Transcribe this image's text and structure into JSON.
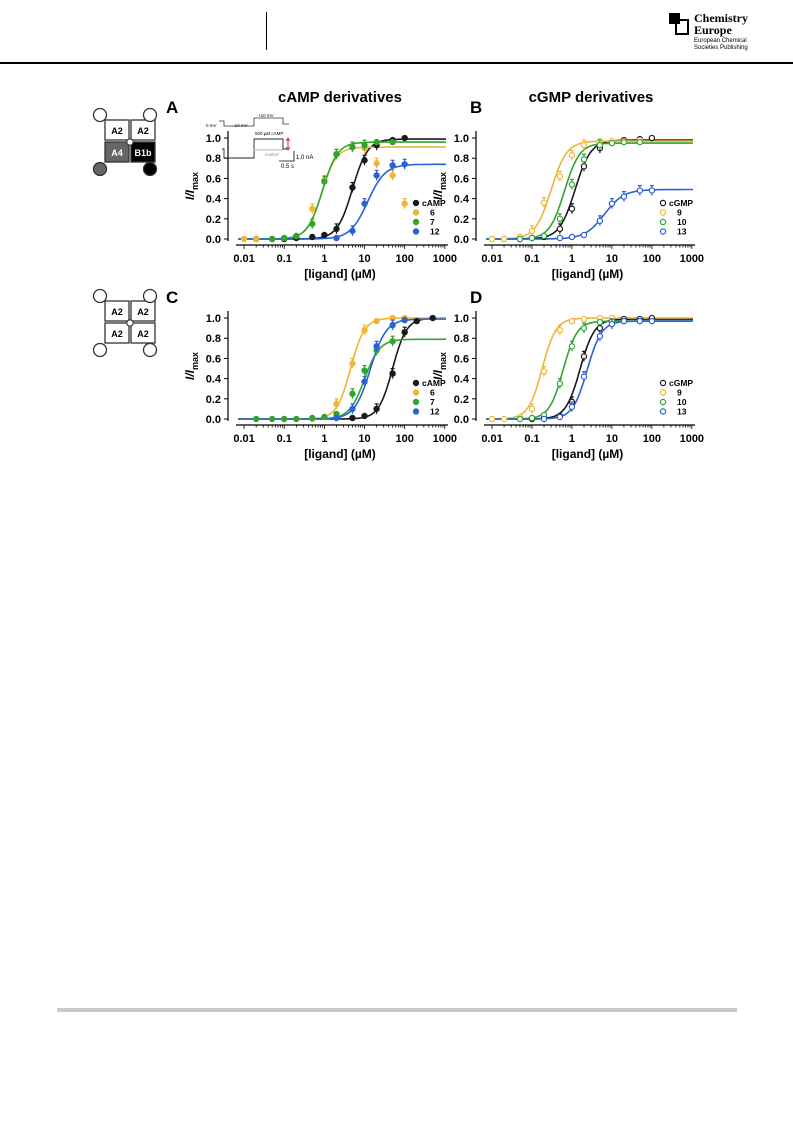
{
  "header": {
    "journal_brand_line1": "Chemistry",
    "journal_brand_line2": "Europe",
    "publisher_line1": "European Chemical",
    "publisher_line2": "Societies Publishing"
  },
  "figure": {
    "column_titles": [
      "cAMP derivatives",
      "cGMP derivatives"
    ],
    "inset": {
      "voltage_labels": [
        "0 mV",
        "−10 mV",
        "+10 mV"
      ],
      "ligand_label": "500 µM cAMP",
      "control_label": "control",
      "scale_current": "1.0 nA",
      "scale_time": "0.5 s"
    },
    "schematics": [
      {
        "subunits": [
          "A2",
          "A2",
          "A4",
          "B1b"
        ],
        "colors": [
          "#ffffff",
          "#ffffff",
          "#666666",
          "#000000"
        ]
      },
      {
        "subunits": [
          "A2",
          "A2",
          "A2",
          "A2"
        ],
        "colors": [
          "#ffffff",
          "#ffffff",
          "#ffffff",
          "#ffffff"
        ]
      }
    ]
  },
  "chart_data": [
    {
      "panel": "A",
      "type": "line",
      "xscale": "log",
      "xlim": [
        0.005,
        1200
      ],
      "ylim": [
        0,
        1.05
      ],
      "xlabel": "[ligand] (µM)",
      "ylabel": "I/I",
      "ylabel_sub": "max",
      "xticks": [
        "0.01",
        "0.1",
        "1",
        "10",
        "100",
        "1000"
      ],
      "yticks": [
        "0.0",
        "0.2",
        "0.4",
        "0.6",
        "0.8",
        "1.0"
      ],
      "legend_position": "bottom-right",
      "marker": "filled",
      "series": [
        {
          "name": "cAMP",
          "color": "#1a1a1a",
          "fit": {
            "max": 0.99,
            "ec50": 5.0,
            "h": 2.3
          },
          "x": [
            0.02,
            0.05,
            0.1,
            0.2,
            0.5,
            1,
            2,
            5,
            10,
            20,
            50,
            100
          ],
          "y": [
            0,
            0,
            0,
            0.01,
            0.02,
            0.04,
            0.1,
            0.51,
            0.78,
            0.93,
            0.98,
            1.0
          ]
        },
        {
          "name": "6",
          "color": "#f0b537",
          "fit": {
            "max": 0.91,
            "ec50": 0.85,
            "h": 2.4
          },
          "x": [
            0.01,
            0.02,
            0.05,
            0.1,
            0.2,
            0.5,
            1,
            2,
            5,
            10,
            20,
            50,
            100
          ],
          "y": [
            0,
            0,
            0,
            0.01,
            0.03,
            0.3,
            0.58,
            0.84,
            0.91,
            0.9,
            0.75,
            0.63,
            0.35
          ]
        },
        {
          "name": "7",
          "color": "#2fa52f",
          "fit": {
            "max": 0.96,
            "ec50": 0.9,
            "h": 2.3
          },
          "x": [
            0.05,
            0.1,
            0.2,
            0.5,
            1,
            2,
            5,
            10,
            20,
            50
          ],
          "y": [
            0,
            0.01,
            0.03,
            0.15,
            0.57,
            0.84,
            0.91,
            0.93,
            0.96,
            0.96
          ]
        },
        {
          "name": "12",
          "color": "#2a62d6",
          "fit": {
            "max": 0.74,
            "ec50": 12,
            "h": 2.0
          },
          "x": [
            2,
            5,
            10,
            20,
            50,
            100
          ],
          "y": [
            0.01,
            0.08,
            0.35,
            0.63,
            0.73,
            0.74
          ]
        }
      ]
    },
    {
      "panel": "B",
      "type": "line",
      "xscale": "log",
      "xlim": [
        0.005,
        1200
      ],
      "ylim": [
        0,
        1.05
      ],
      "xlabel": "[ligand] (µM)",
      "ylabel": "I/I",
      "ylabel_sub": "max",
      "xticks": [
        "0.01",
        "0.1",
        "1",
        "10",
        "100",
        "1000"
      ],
      "yticks": [
        "0.0",
        "0.2",
        "0.4",
        "0.6",
        "0.8",
        "1.0"
      ],
      "legend_position": "bottom-right",
      "marker": "open",
      "series": [
        {
          "name": "cGMP",
          "color": "#1a1a1a",
          "fit": {
            "max": 0.98,
            "ec50": 1.2,
            "h": 2.2
          },
          "x": [
            0.05,
            0.1,
            0.2,
            0.5,
            1,
            2,
            5,
            10,
            20,
            50,
            100
          ],
          "y": [
            0,
            0.01,
            0.02,
            0.1,
            0.3,
            0.72,
            0.9,
            0.96,
            0.98,
            0.99,
            1.0
          ]
        },
        {
          "name": "9",
          "color": "#f0b537",
          "fit": {
            "max": 0.97,
            "ec50": 0.3,
            "h": 2.2
          },
          "x": [
            0.01,
            0.02,
            0.05,
            0.1,
            0.2,
            0.5,
            1,
            2,
            5,
            10,
            20,
            50
          ],
          "y": [
            0,
            0,
            0.02,
            0.08,
            0.36,
            0.62,
            0.83,
            0.93,
            0.97,
            0.97,
            0.97,
            0.98
          ]
        },
        {
          "name": "10",
          "color": "#2fa52f",
          "fit": {
            "max": 0.95,
            "ec50": 0.65,
            "h": 2.3
          },
          "x": [
            0.05,
            0.1,
            0.2,
            0.5,
            1,
            2,
            5,
            10,
            20,
            50
          ],
          "y": [
            0,
            0.01,
            0.03,
            0.2,
            0.54,
            0.79,
            0.93,
            0.95,
            0.96,
            0.96
          ]
        },
        {
          "name": "13",
          "color": "#2a62d6",
          "fit": {
            "max": 0.49,
            "ec50": 6.5,
            "h": 1.8
          },
          "x": [
            0.5,
            1,
            2,
            5,
            10,
            20,
            50,
            100
          ],
          "y": [
            0.01,
            0.02,
            0.04,
            0.18,
            0.35,
            0.42,
            0.48,
            0.48
          ]
        }
      ]
    },
    {
      "panel": "C",
      "type": "line",
      "xscale": "log",
      "xlim": [
        0.005,
        1200
      ],
      "ylim": [
        0,
        1.05
      ],
      "xlabel": "[ligand] (µM)",
      "ylabel": "I/I",
      "ylabel_sub": "max",
      "xticks": [
        "0.01",
        "0.1",
        "1",
        "10",
        "100",
        "1000"
      ],
      "yticks": [
        "0.0",
        "0.2",
        "0.4",
        "0.6",
        "0.8",
        "1.0"
      ],
      "legend_position": "bottom-right",
      "marker": "filled",
      "series": [
        {
          "name": "cAMP",
          "color": "#1a1a1a",
          "fit": {
            "max": 1.0,
            "ec50": 50,
            "h": 2.5
          },
          "x": [
            5,
            10,
            20,
            50,
            100,
            200,
            500
          ],
          "y": [
            0.01,
            0.03,
            0.1,
            0.45,
            0.86,
            0.97,
            1.0
          ]
        },
        {
          "name": "6",
          "color": "#f0b537",
          "fit": {
            "max": 1.0,
            "ec50": 4.5,
            "h": 2.5
          },
          "x": [
            0.5,
            1,
            2,
            5,
            10,
            20,
            50,
            100
          ],
          "y": [
            0,
            0.02,
            0.15,
            0.55,
            0.88,
            0.97,
            1.0,
            1.0
          ]
        },
        {
          "name": "7",
          "color": "#2fa52f",
          "fit": {
            "max": 0.79,
            "ec50": 10,
            "h": 2.3
          },
          "x": [
            0.02,
            0.05,
            0.1,
            0.2,
            0.5,
            1,
            2,
            5,
            10,
            20,
            50
          ],
          "y": [
            0,
            0,
            0,
            0,
            0.01,
            0.02,
            0.05,
            0.25,
            0.48,
            0.68,
            0.77
          ]
        },
        {
          "name": "12",
          "color": "#2a62d6",
          "fit": {
            "max": 0.99,
            "ec50": 14,
            "h": 2.2
          },
          "x": [
            2,
            5,
            10,
            20,
            50,
            100
          ],
          "y": [
            0.01,
            0.1,
            0.37,
            0.72,
            0.93,
            0.98
          ]
        }
      ]
    },
    {
      "panel": "D",
      "type": "line",
      "xscale": "log",
      "xlim": [
        0.005,
        1200
      ],
      "ylim": [
        0,
        1.05
      ],
      "xlabel": "[ligand] (µM)",
      "ylabel": "I/I",
      "ylabel_sub": "max",
      "xticks": [
        "0.01",
        "0.1",
        "1",
        "10",
        "100",
        "1000"
      ],
      "yticks": [
        "0.0",
        "0.2",
        "0.4",
        "0.6",
        "0.8",
        "1.0"
      ],
      "legend_position": "bottom-right",
      "marker": "open",
      "series": [
        {
          "name": "cGMP",
          "color": "#1a1a1a",
          "fit": {
            "max": 0.99,
            "ec50": 1.6,
            "h": 2.4
          },
          "x": [
            0.1,
            0.2,
            0.5,
            1,
            2,
            5,
            10,
            20,
            50,
            100
          ],
          "y": [
            0,
            0.01,
            0.03,
            0.17,
            0.62,
            0.9,
            0.97,
            0.99,
            0.99,
            1.0
          ]
        },
        {
          "name": "9",
          "color": "#f0b537",
          "fit": {
            "max": 1.0,
            "ec50": 0.18,
            "h": 2.5
          },
          "x": [
            0.01,
            0.02,
            0.05,
            0.1,
            0.2,
            0.5,
            1,
            2,
            5,
            10
          ],
          "y": [
            0,
            0,
            0.02,
            0.1,
            0.47,
            0.88,
            0.97,
            0.99,
            1.0,
            1.0
          ]
        },
        {
          "name": "10",
          "color": "#2fa52f",
          "fit": {
            "max": 0.97,
            "ec50": 0.6,
            "h": 2.5
          },
          "x": [
            0.05,
            0.1,
            0.2,
            0.5,
            1,
            2,
            5,
            10,
            20,
            50
          ],
          "y": [
            0,
            0.01,
            0.04,
            0.35,
            0.72,
            0.9,
            0.96,
            0.97,
            0.97,
            0.97
          ]
        },
        {
          "name": "13",
          "color": "#2a62d6",
          "fit": {
            "max": 0.97,
            "ec50": 2.4,
            "h": 2.4
          },
          "x": [
            0.2,
            0.5,
            1,
            2,
            5,
            10,
            20,
            50,
            100
          ],
          "y": [
            0,
            0.02,
            0.12,
            0.42,
            0.82,
            0.94,
            0.97,
            0.97,
            0.97
          ]
        }
      ]
    }
  ]
}
